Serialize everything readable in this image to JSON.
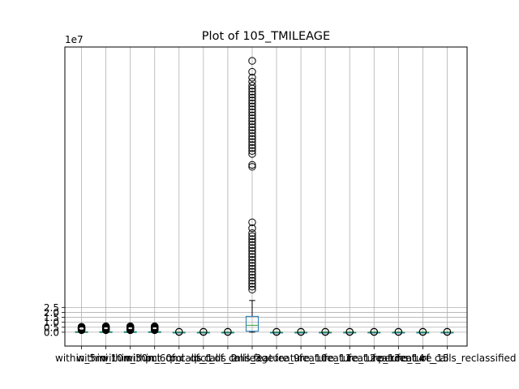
{
  "chart_data": {
    "type": "box",
    "title": "Plot of 105_TMILEAGE",
    "y_scale_label": "1e7",
    "ylim": [
      -1.4,
      28.8
    ],
    "y_ticks": [
      0.0,
      0.5,
      1.0,
      1.5,
      2.0,
      2.5
    ],
    "y_tick_labels": [
      "0.0",
      "0.5",
      "1.0",
      "1.5",
      "2.0",
      "2.5"
    ],
    "grid": true,
    "categories": [
      "within_5mi",
      "within_10mi",
      "within_30mi",
      "within_60mi",
      "pct_of_calls_1",
      "pct_of_calls_2",
      "pct_of_calls_3",
      "tmileage",
      "feature_9",
      "feature_10",
      "feature_11",
      "feature_12",
      "feature_13",
      "feature_14",
      "feature_15",
      "percent_of_calls_reclassified"
    ],
    "visible_tick_text": "within_5mi within_10mi within_30mi within_60mi ... percent_of_calls_reclassified (labels overlap and are illegible)",
    "series": [
      {
        "q1": 0.0,
        "median": 0.0,
        "q3": 0.05,
        "wmin": 0.0,
        "wmax": 0.15,
        "outliers": [
          0.2,
          0.25,
          0.3,
          0.35,
          0.4,
          0.45,
          0.5,
          0.55
        ]
      },
      {
        "q1": 0.0,
        "median": 0.0,
        "q3": 0.05,
        "wmin": 0.0,
        "wmax": 0.15,
        "outliers": [
          0.2,
          0.25,
          0.3,
          0.35,
          0.4,
          0.45,
          0.5,
          0.55,
          0.6
        ]
      },
      {
        "q1": 0.0,
        "median": 0.0,
        "q3": 0.05,
        "wmin": 0.0,
        "wmax": 0.15,
        "outliers": [
          0.2,
          0.25,
          0.3,
          0.35,
          0.4,
          0.45,
          0.5,
          0.55,
          0.6
        ]
      },
      {
        "q1": 0.0,
        "median": 0.0,
        "q3": 0.05,
        "wmin": 0.0,
        "wmax": 0.15,
        "outliers": [
          0.2,
          0.25,
          0.3,
          0.35,
          0.4,
          0.45,
          0.5,
          0.55,
          0.6
        ]
      },
      {
        "q1": 0.0,
        "median": 0.0,
        "q3": 0.0,
        "wmin": 0.0,
        "wmax": 0.0,
        "outliers": [
          0.02,
          0.05
        ]
      },
      {
        "q1": 0.0,
        "median": 0.0,
        "q3": 0.0,
        "wmin": 0.0,
        "wmax": 0.0,
        "outliers": [
          0.02,
          0.05
        ]
      },
      {
        "q1": 0.0,
        "median": 0.0,
        "q3": 0.0,
        "wmin": 0.0,
        "wmax": 0.0,
        "outliers": [
          0.02,
          0.05
        ]
      },
      {
        "q1": 0.1,
        "median": 0.7,
        "q3": 1.6,
        "wmin": 0.0,
        "wmax": 3.2,
        "outliers": [
          4.3,
          4.6,
          4.9,
          5.2,
          5.5,
          5.8,
          6.1,
          6.4,
          6.7,
          7.0,
          7.3,
          7.6,
          7.9,
          8.2,
          8.5,
          8.8,
          9.1,
          9.4,
          9.7,
          10.0,
          10.5,
          11.1,
          16.7,
          16.9,
          18.0,
          18.3,
          18.6,
          18.9,
          19.2,
          19.5,
          19.8,
          20.1,
          20.4,
          20.7,
          21.0,
          21.3,
          21.6,
          21.9,
          22.2,
          22.5,
          22.8,
          23.1,
          23.4,
          23.7,
          24.0,
          24.3,
          24.6,
          24.9,
          25.3,
          25.7,
          26.3,
          27.4
        ]
      },
      {
        "q1": 0.0,
        "median": 0.0,
        "q3": 0.0,
        "wmin": 0.0,
        "wmax": 0.0,
        "outliers": [
          0.02,
          0.05
        ]
      },
      {
        "q1": 0.0,
        "median": 0.0,
        "q3": 0.0,
        "wmin": 0.0,
        "wmax": 0.0,
        "outliers": [
          0.02,
          0.05
        ]
      },
      {
        "q1": 0.0,
        "median": 0.0,
        "q3": 0.0,
        "wmin": 0.0,
        "wmax": 0.0,
        "outliers": [
          0.02,
          0.05
        ]
      },
      {
        "q1": 0.0,
        "median": 0.0,
        "q3": 0.0,
        "wmin": 0.0,
        "wmax": 0.0,
        "outliers": [
          0.02,
          0.05
        ]
      },
      {
        "q1": 0.0,
        "median": 0.0,
        "q3": 0.0,
        "wmin": 0.0,
        "wmax": 0.0,
        "outliers": [
          0.02,
          0.05
        ]
      },
      {
        "q1": 0.0,
        "median": 0.0,
        "q3": 0.0,
        "wmin": 0.0,
        "wmax": 0.0,
        "outliers": [
          0.02,
          0.05
        ]
      },
      {
        "q1": 0.0,
        "median": 0.0,
        "q3": 0.0,
        "wmin": 0.0,
        "wmax": 0.0,
        "outliers": [
          0.02,
          0.05
        ]
      },
      {
        "q1": 0.0,
        "median": 0.0,
        "q3": 0.0,
        "wmin": 0.0,
        "wmax": 0.0,
        "outliers": [
          0.02,
          0.05
        ]
      }
    ],
    "colors": {
      "box": "#1f77b4",
      "median": "#2ca02c",
      "grid": "#b0b0b0",
      "axis": "#000000"
    }
  }
}
